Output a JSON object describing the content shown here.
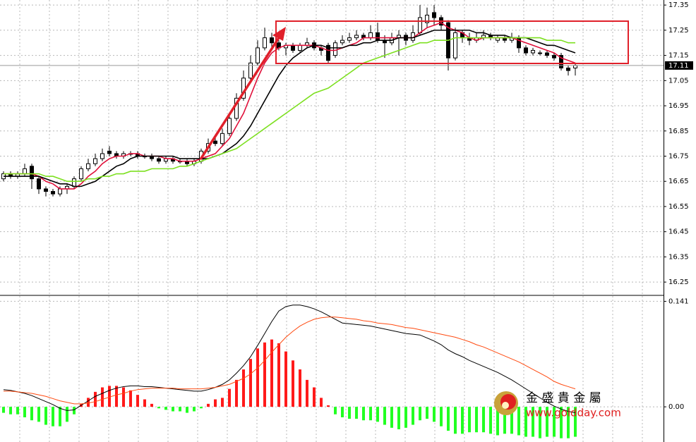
{
  "chart_data": [
    {
      "type": "candlestick",
      "open": [
        16.66,
        16.68,
        16.67,
        16.68,
        16.71,
        16.66,
        16.62,
        16.61,
        16.6,
        16.62,
        16.63,
        16.66,
        16.7,
        16.72,
        16.74,
        16.77,
        16.76,
        16.75,
        16.76,
        16.76,
        16.75,
        16.75,
        16.74,
        16.73,
        16.74,
        16.73,
        16.73,
        16.72,
        16.73,
        16.77,
        16.81,
        16.8,
        16.84,
        16.9,
        16.98,
        17.06,
        17.12,
        17.18,
        17.22,
        17.2,
        17.18,
        17.19,
        17.17,
        17.19,
        17.2,
        17.18,
        17.19,
        17.15,
        17.2,
        17.21,
        17.22,
        17.23,
        17.22,
        17.24,
        17.21,
        17.2,
        17.22,
        17.23,
        17.21,
        17.24,
        17.28,
        17.32,
        17.3,
        17.28,
        17.14,
        17.24,
        17.22,
        17.21,
        17.22,
        17.23,
        17.21,
        17.22,
        17.21,
        17.22,
        17.18,
        17.16,
        17.16,
        17.16,
        17.15,
        17.15,
        17.1,
        17.1
      ],
      "high": [
        16.69,
        16.69,
        16.69,
        16.72,
        16.72,
        16.67,
        16.63,
        16.62,
        16.63,
        16.64,
        16.67,
        16.71,
        16.74,
        16.76,
        16.78,
        16.79,
        16.77,
        16.77,
        16.77,
        16.77,
        16.76,
        16.76,
        16.75,
        16.75,
        16.75,
        16.74,
        16.74,
        16.74,
        16.78,
        16.82,
        16.83,
        16.86,
        16.92,
        17.0,
        17.09,
        17.15,
        17.21,
        17.26,
        17.24,
        17.21,
        17.2,
        17.2,
        17.2,
        17.22,
        17.21,
        17.19,
        17.2,
        17.21,
        17.23,
        17.24,
        17.25,
        17.24,
        17.27,
        17.28,
        17.23,
        17.24,
        17.25,
        17.24,
        17.27,
        17.35,
        17.34,
        17.35,
        17.31,
        17.29,
        17.26,
        17.25,
        17.24,
        17.24,
        17.25,
        17.24,
        17.23,
        17.23,
        17.24,
        17.23,
        17.19,
        17.18,
        17.17,
        17.17,
        17.16,
        17.16,
        17.11,
        17.12
      ],
      "low": [
        16.65,
        16.66,
        16.66,
        16.67,
        16.62,
        16.6,
        16.59,
        16.59,
        16.59,
        16.6,
        16.62,
        16.65,
        16.69,
        16.71,
        16.73,
        16.75,
        16.74,
        16.74,
        16.75,
        16.74,
        16.74,
        16.73,
        16.72,
        16.72,
        16.72,
        16.72,
        16.71,
        16.71,
        16.72,
        16.76,
        16.79,
        16.79,
        16.83,
        16.89,
        16.97,
        17.05,
        17.11,
        17.17,
        17.18,
        17.17,
        17.15,
        17.16,
        17.16,
        17.18,
        17.17,
        17.15,
        17.12,
        17.14,
        17.19,
        17.2,
        17.21,
        17.21,
        17.21,
        17.2,
        17.14,
        17.19,
        17.15,
        17.19,
        17.2,
        17.23,
        17.26,
        17.27,
        17.25,
        17.09,
        17.13,
        17.2,
        17.19,
        17.2,
        17.21,
        17.21,
        17.2,
        17.2,
        17.2,
        17.16,
        17.15,
        17.15,
        17.15,
        17.14,
        17.13,
        17.09,
        17.07,
        17.07
      ],
      "close": [
        16.68,
        16.67,
        16.68,
        16.7,
        16.66,
        16.62,
        16.61,
        16.6,
        16.62,
        16.63,
        16.66,
        16.7,
        16.72,
        16.74,
        16.76,
        16.76,
        16.75,
        16.76,
        16.76,
        16.75,
        16.75,
        16.74,
        16.73,
        16.74,
        16.73,
        16.73,
        16.72,
        16.73,
        16.77,
        16.8,
        16.8,
        16.84,
        16.9,
        16.98,
        17.06,
        17.12,
        17.18,
        17.22,
        17.2,
        17.18,
        17.19,
        17.17,
        17.19,
        17.2,
        17.18,
        17.17,
        17.13,
        17.2,
        17.21,
        17.22,
        17.23,
        17.22,
        17.24,
        17.21,
        17.2,
        17.22,
        17.23,
        17.21,
        17.24,
        17.3,
        17.31,
        17.3,
        17.27,
        17.14,
        17.24,
        17.22,
        17.21,
        17.22,
        17.23,
        17.22,
        17.22,
        17.21,
        17.22,
        17.18,
        17.16,
        17.17,
        17.16,
        17.15,
        17.14,
        17.1,
        17.09,
        17.11
      ],
      "series": [
        {
          "color": "#e0103a",
          "values": [
            16.68,
            16.68,
            16.68,
            16.68,
            16.68,
            16.67,
            16.65,
            16.64,
            16.62,
            16.62,
            16.62,
            16.64,
            16.67,
            16.69,
            16.72,
            16.74,
            16.75,
            16.75,
            16.76,
            16.76,
            16.75,
            16.75,
            16.75,
            16.74,
            16.74,
            16.73,
            16.73,
            16.73,
            16.74,
            16.75,
            16.76,
            16.79,
            16.82,
            16.87,
            16.92,
            16.99,
            17.06,
            17.12,
            17.16,
            17.18,
            17.19,
            17.19,
            17.19,
            17.19,
            17.19,
            17.18,
            17.17,
            17.17,
            17.18,
            17.19,
            17.2,
            17.22,
            17.22,
            17.22,
            17.22,
            17.22,
            17.22,
            17.22,
            17.22,
            17.24,
            17.26,
            17.27,
            17.28,
            17.26,
            17.25,
            17.24,
            17.22,
            17.21,
            17.22,
            17.22,
            17.22,
            17.22,
            17.22,
            17.21,
            17.2,
            17.19,
            17.18,
            17.17,
            17.16,
            17.14,
            17.13,
            17.12
          ]
        },
        {
          "color": "#000000",
          "values": [
            16.67,
            16.67,
            16.67,
            16.67,
            16.67,
            16.67,
            16.66,
            16.65,
            16.64,
            16.64,
            16.63,
            16.63,
            16.64,
            16.65,
            16.67,
            16.69,
            16.71,
            16.72,
            16.74,
            16.75,
            16.75,
            16.75,
            16.75,
            16.75,
            16.75,
            16.74,
            16.74,
            16.74,
            16.74,
            16.74,
            16.75,
            16.76,
            16.78,
            16.8,
            16.83,
            16.87,
            16.92,
            16.97,
            17.02,
            17.07,
            17.11,
            17.14,
            17.16,
            17.18,
            17.19,
            17.19,
            17.18,
            17.18,
            17.18,
            17.19,
            17.19,
            17.2,
            17.2,
            17.21,
            17.21,
            17.21,
            17.22,
            17.22,
            17.22,
            17.23,
            17.24,
            17.25,
            17.25,
            17.25,
            17.25,
            17.25,
            17.25,
            17.24,
            17.24,
            17.23,
            17.23,
            17.23,
            17.22,
            17.22,
            17.22,
            17.21,
            17.2,
            17.19,
            17.19,
            17.18,
            17.17,
            17.16
          ]
        },
        {
          "color": "#7de020",
          "values": [
            16.68,
            16.68,
            16.68,
            16.68,
            16.68,
            16.68,
            16.67,
            16.67,
            16.66,
            16.65,
            16.65,
            16.65,
            16.66,
            16.66,
            16.67,
            16.67,
            16.68,
            16.68,
            16.69,
            16.69,
            16.69,
            16.7,
            16.7,
            16.7,
            16.7,
            16.71,
            16.71,
            16.72,
            16.73,
            16.74,
            16.75,
            16.76,
            16.77,
            16.78,
            16.8,
            16.82,
            16.84,
            16.86,
            16.88,
            16.9,
            16.92,
            16.94,
            16.96,
            16.98,
            17.0,
            17.01,
            17.02,
            17.04,
            17.06,
            17.08,
            17.1,
            17.12,
            17.13,
            17.14,
            17.15,
            17.16,
            17.17,
            17.18,
            17.19,
            17.2,
            17.2,
            17.21,
            17.21,
            17.21,
            17.22,
            17.22,
            17.22,
            17.22,
            17.22,
            17.22,
            17.22,
            17.22,
            17.22,
            17.22,
            17.22,
            17.22,
            17.22,
            17.21,
            17.21,
            17.21,
            17.2,
            17.2
          ]
        }
      ],
      "ylim": [
        16.2,
        17.37
      ],
      "yticks": [
        17.35,
        17.25,
        17.15,
        17.05,
        16.95,
        16.85,
        16.75,
        16.65,
        16.55,
        16.45,
        16.35,
        16.25
      ],
      "last_price": {
        "value": 17.11,
        "label": "17.11"
      },
      "grid": true,
      "up_color": "#ffffff",
      "down_color": "#000000"
    },
    {
      "type": "macd",
      "values": [
        -0.008,
        -0.01,
        -0.01,
        -0.014,
        -0.018,
        -0.02,
        -0.024,
        -0.026,
        -0.026,
        -0.02,
        -0.01,
        0.004,
        0.012,
        0.02,
        0.026,
        0.028,
        0.028,
        0.026,
        0.022,
        0.016,
        0.01,
        0.004,
        -0.002,
        -0.004,
        -0.006,
        -0.006,
        -0.008,
        -0.006,
        -0.002,
        0.004,
        0.01,
        0.012,
        0.024,
        0.036,
        0.05,
        0.064,
        0.078,
        0.086,
        0.09,
        0.085,
        0.074,
        0.062,
        0.05,
        0.036,
        0.026,
        0.012,
        0.002,
        -0.01,
        -0.014,
        -0.016,
        -0.016,
        -0.018,
        -0.018,
        -0.02,
        -0.024,
        -0.028,
        -0.03,
        -0.028,
        -0.024,
        -0.018,
        -0.016,
        -0.02,
        -0.026,
        -0.032,
        -0.036,
        -0.036,
        -0.034,
        -0.034,
        -0.034,
        -0.036,
        -0.038,
        -0.036,
        -0.036,
        -0.038,
        -0.04,
        -0.04,
        -0.042,
        -0.04,
        -0.04,
        -0.042,
        -0.042,
        -0.04
      ],
      "positive_color": "#ff1a1a",
      "negative_color": "#22ff22",
      "series": [
        {
          "color": "#000000",
          "values": [
            0.023,
            0.022,
            0.02,
            0.018,
            0.015,
            0.011,
            0.007,
            0.003,
            -0.002,
            -0.005,
            -0.004,
            0.002,
            0.008,
            0.014,
            0.018,
            0.022,
            0.025,
            0.027,
            0.028,
            0.028,
            0.027,
            0.027,
            0.026,
            0.025,
            0.024,
            0.023,
            0.022,
            0.021,
            0.021,
            0.023,
            0.026,
            0.03,
            0.036,
            0.045,
            0.055,
            0.067,
            0.082,
            0.098,
            0.114,
            0.128,
            0.134,
            0.136,
            0.136,
            0.134,
            0.131,
            0.127,
            0.122,
            0.117,
            0.112,
            0.111,
            0.11,
            0.109,
            0.108,
            0.106,
            0.104,
            0.102,
            0.1,
            0.098,
            0.097,
            0.096,
            0.092,
            0.088,
            0.083,
            0.076,
            0.071,
            0.067,
            0.062,
            0.058,
            0.054,
            0.05,
            0.046,
            0.041,
            0.036,
            0.03,
            0.024,
            0.018,
            0.012,
            0.006,
            0.001,
            -0.003,
            -0.006,
            -0.008
          ]
        },
        {
          "color": "#ff4a10",
          "values": [
            0.021,
            0.021,
            0.02,
            0.019,
            0.018,
            0.016,
            0.014,
            0.011,
            0.008,
            0.006,
            0.004,
            0.004,
            0.005,
            0.007,
            0.01,
            0.013,
            0.016,
            0.018,
            0.021,
            0.023,
            0.024,
            0.025,
            0.025,
            0.025,
            0.025,
            0.024,
            0.024,
            0.024,
            0.024,
            0.025,
            0.026,
            0.028,
            0.03,
            0.034,
            0.038,
            0.044,
            0.052,
            0.062,
            0.073,
            0.083,
            0.093,
            0.101,
            0.108,
            0.113,
            0.117,
            0.119,
            0.12,
            0.12,
            0.119,
            0.118,
            0.117,
            0.115,
            0.114,
            0.112,
            0.111,
            0.11,
            0.108,
            0.106,
            0.105,
            0.103,
            0.101,
            0.099,
            0.097,
            0.095,
            0.093,
            0.09,
            0.087,
            0.083,
            0.08,
            0.076,
            0.072,
            0.068,
            0.064,
            0.06,
            0.055,
            0.05,
            0.045,
            0.04,
            0.034,
            0.03,
            0.027,
            0.024
          ]
        }
      ],
      "ylim": [
        -0.047,
        0.148
      ],
      "yticks": [
        0.141,
        {
          "value": 0,
          "label": "0.00"
        }
      ],
      "grid": true
    }
  ],
  "watermark": {
    "name": "金 盛 貴 金 屬",
    "url": "www.goldday.com"
  }
}
